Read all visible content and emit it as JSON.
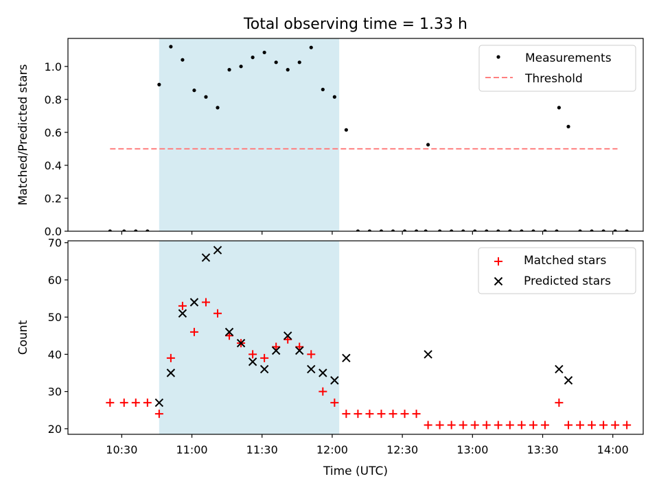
{
  "figure_title": "Total observing time = 1.33 h",
  "chart_data": [
    {
      "type": "scatter",
      "ylabel": "Matched/Predicted stars",
      "xlabel": "",
      "ylim": [
        0,
        1.17
      ],
      "yticks": [
        "0.0",
        "0.2",
        "0.4",
        "0.6",
        "0.8",
        "1.0"
      ],
      "shaded_region": {
        "x_start": "10:46",
        "x_end": "12:03",
        "color": "#add8e6"
      },
      "legend_position": "top-right",
      "legend": {
        "measurements": "Measurements",
        "threshold": "Threshold"
      },
      "threshold": {
        "value": 0.5,
        "x_start": "10:25",
        "x_end": "14:02",
        "color": "#ff7f7f"
      },
      "series": [
        {
          "name": "Measurements",
          "color": "#000000",
          "points": [
            [
              "10:25",
              0
            ],
            [
              "10:31",
              0
            ],
            [
              "10:36",
              0
            ],
            [
              "10:41",
              0
            ],
            [
              "10:46",
              0.89
            ],
            [
              "10:51",
              1.12
            ],
            [
              "10:56",
              1.04
            ],
            [
              "11:01",
              0.855
            ],
            [
              "11:06",
              0.815
            ],
            [
              "11:11",
              0.75
            ],
            [
              "11:16",
              0.98
            ],
            [
              "11:21",
              1.0
            ],
            [
              "11:26",
              1.055
            ],
            [
              "11:31",
              1.085
            ],
            [
              "11:36",
              1.025
            ],
            [
              "11:41",
              0.98
            ],
            [
              "11:46",
              1.025
            ],
            [
              "11:51",
              1.115
            ],
            [
              "11:56",
              0.86
            ],
            [
              "12:01",
              0.815
            ],
            [
              "12:06",
              0.615
            ],
            [
              "12:11",
              0
            ],
            [
              "12:16",
              0
            ],
            [
              "12:21",
              0
            ],
            [
              "12:26",
              0
            ],
            [
              "12:31",
              0
            ],
            [
              "12:36",
              0
            ],
            [
              "12:40",
              0
            ],
            [
              "12:41",
              0.525
            ],
            [
              "12:46",
              0
            ],
            [
              "12:51",
              0
            ],
            [
              "12:56",
              0
            ],
            [
              "13:01",
              0
            ],
            [
              "13:06",
              0
            ],
            [
              "13:11",
              0
            ],
            [
              "13:16",
              0
            ],
            [
              "13:21",
              0
            ],
            [
              "13:26",
              0
            ],
            [
              "13:31",
              0
            ],
            [
              "13:36",
              0
            ],
            [
              "13:37",
              0.75
            ],
            [
              "13:41",
              0.635
            ],
            [
              "13:46",
              0
            ],
            [
              "13:51",
              0
            ],
            [
              "13:56",
              0
            ],
            [
              "14:01",
              0
            ],
            [
              "14:06",
              0
            ]
          ]
        }
      ]
    },
    {
      "type": "scatter",
      "ylabel": "Count",
      "xlabel": "Time (UTC)",
      "ylim": [
        18.5,
        70.5
      ],
      "yticks": [
        "20",
        "30",
        "40",
        "50",
        "60",
        "70"
      ],
      "xticks": [
        "10:30",
        "11:00",
        "11:30",
        "12:00",
        "12:30",
        "13:00",
        "13:30",
        "14:00"
      ],
      "shaded_region": {
        "x_start": "10:46",
        "x_end": "12:03",
        "color": "#add8e6"
      },
      "legend_position": "top-right",
      "series": [
        {
          "name": "Matched stars",
          "color": "#ff0000",
          "marker": "+",
          "points": [
            [
              "10:25",
              27
            ],
            [
              "10:31",
              27
            ],
            [
              "10:36",
              27
            ],
            [
              "10:41",
              27
            ],
            [
              "10:46",
              24
            ],
            [
              "10:51",
              39
            ],
            [
              "10:56",
              53
            ],
            [
              "11:01",
              46
            ],
            [
              "11:06",
              54
            ],
            [
              "11:11",
              51
            ],
            [
              "11:16",
              45
            ],
            [
              "11:21",
              43
            ],
            [
              "11:26",
              40
            ],
            [
              "11:31",
              39
            ],
            [
              "11:36",
              42
            ],
            [
              "11:41",
              44
            ],
            [
              "11:46",
              42
            ],
            [
              "11:51",
              40
            ],
            [
              "11:56",
              30
            ],
            [
              "12:01",
              27
            ],
            [
              "12:06",
              24
            ],
            [
              "12:11",
              24
            ],
            [
              "12:16",
              24
            ],
            [
              "12:21",
              24
            ],
            [
              "12:26",
              24
            ],
            [
              "12:31",
              24
            ],
            [
              "12:36",
              24
            ],
            [
              "12:41",
              21
            ],
            [
              "12:46",
              21
            ],
            [
              "12:51",
              21
            ],
            [
              "12:56",
              21
            ],
            [
              "13:01",
              21
            ],
            [
              "13:06",
              21
            ],
            [
              "13:11",
              21
            ],
            [
              "13:16",
              21
            ],
            [
              "13:21",
              21
            ],
            [
              "13:26",
              21
            ],
            [
              "13:31",
              21
            ],
            [
              "13:37",
              27
            ],
            [
              "13:41",
              21
            ],
            [
              "13:46",
              21
            ],
            [
              "13:51",
              21
            ],
            [
              "13:56",
              21
            ],
            [
              "14:01",
              21
            ],
            [
              "14:06",
              21
            ]
          ]
        },
        {
          "name": "Predicted stars",
          "color": "#000000",
          "marker": "x",
          "points": [
            [
              "10:46",
              27
            ],
            [
              "10:51",
              35
            ],
            [
              "10:56",
              51
            ],
            [
              "11:01",
              54
            ],
            [
              "11:06",
              66
            ],
            [
              "11:11",
              68
            ],
            [
              "11:16",
              46
            ],
            [
              "11:21",
              43
            ],
            [
              "11:26",
              38
            ],
            [
              "11:31",
              36
            ],
            [
              "11:36",
              41
            ],
            [
              "11:41",
              45
            ],
            [
              "11:46",
              41
            ],
            [
              "11:51",
              36
            ],
            [
              "11:56",
              35
            ],
            [
              "12:01",
              33
            ],
            [
              "12:06",
              39
            ],
            [
              "12:41",
              40
            ],
            [
              "13:37",
              36
            ],
            [
              "13:41",
              33
            ]
          ]
        }
      ]
    }
  ]
}
